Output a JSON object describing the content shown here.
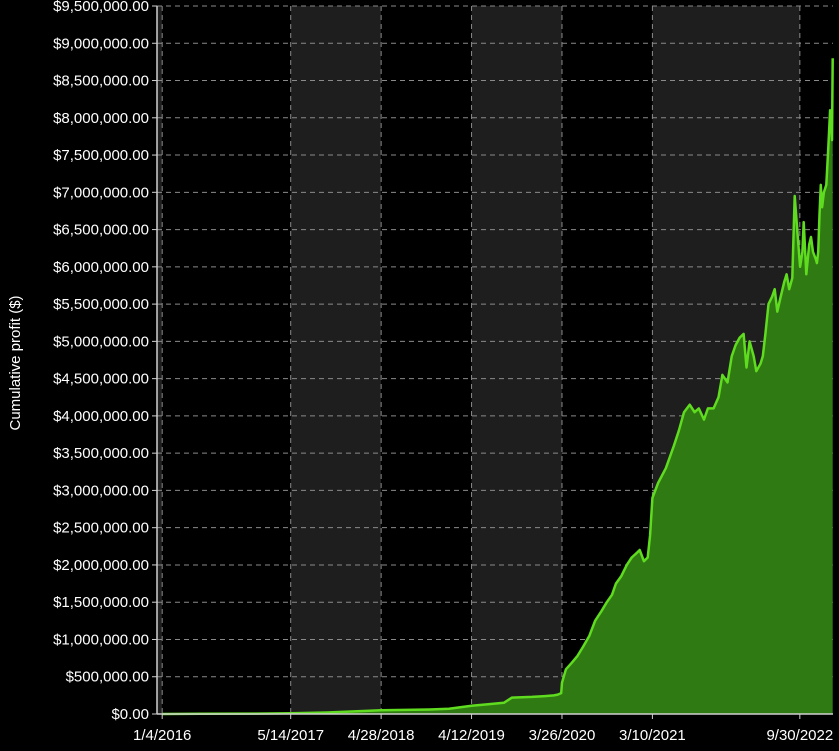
{
  "colors": {
    "background": "#000000",
    "band_light": "#1e1e1e",
    "band_dark": "#000000",
    "grid": "#8a8a8a",
    "axis": "#d0d0d0",
    "line": "#5fdc1f",
    "fill": "#2f7a12",
    "text": "#ffffff"
  },
  "chart_data": {
    "type": "area",
    "title": "",
    "xlabel": "",
    "ylabel": "Cumulative profit ($)",
    "grid": true,
    "legend": "none",
    "ylim": [
      0,
      9500000
    ],
    "xlim": [
      "2015-12-15",
      "2023-02-05"
    ],
    "y_ticks": [
      0,
      500000,
      1000000,
      1500000,
      2000000,
      2500000,
      3000000,
      3500000,
      4000000,
      4500000,
      5000000,
      5500000,
      6000000,
      6500000,
      7000000,
      7500000,
      8000000,
      8500000,
      9000000,
      9500000
    ],
    "y_tick_labels": [
      "$0.00",
      "$500,000.00",
      "$1,000,000.00",
      "$1,500,000.00",
      "$2,000,000.00",
      "$2,500,000.00",
      "$3,000,000.00",
      "$3,500,000.00",
      "$4,000,000.00",
      "$4,500,000.00",
      "$5,000,000.00",
      "$5,500,000.00",
      "$6,000,000.00",
      "$6,500,000.00",
      "$7,000,000.00",
      "$7,500,000.00",
      "$8,000,000.00",
      "$8,500,000.00",
      "$9,000,000.00",
      "$9,500,000.00"
    ],
    "x_ticks": [
      "2016-01-04",
      "2017-05-14",
      "2018-04-28",
      "2019-04-12",
      "2020-03-26",
      "2021-03-10",
      "2022-09-30"
    ],
    "x_tick_labels": [
      "1/4/2016",
      "5/14/2017",
      "4/28/2018",
      "4/12/2019",
      "3/26/2020",
      "3/10/2021",
      "9/30/2022"
    ],
    "series": [
      {
        "x": [
          "2016-01-04",
          "2016-06-01",
          "2017-01-01",
          "2017-05-14",
          "2017-10-01",
          "2018-01-15",
          "2018-04-28",
          "2018-08-01",
          "2018-11-01",
          "2019-01-15",
          "2019-04-12",
          "2019-06-15",
          "2019-08-15",
          "2019-09-15",
          "2019-12-01",
          "2020-01-20",
          "2020-02-24",
          "2020-03-10",
          "2020-03-23",
          "2020-03-26",
          "2020-04-10",
          "2020-05-01",
          "2020-05-25",
          "2020-06-15",
          "2020-07-10",
          "2020-08-01",
          "2020-08-25",
          "2020-09-15",
          "2020-10-05",
          "2020-10-20",
          "2020-11-10",
          "2020-12-01",
          "2020-12-20",
          "2021-01-05",
          "2021-01-20",
          "2021-02-05",
          "2021-02-20",
          "2021-03-01",
          "2021-03-10",
          "2021-04-01",
          "2021-05-01",
          "2021-06-01",
          "2021-06-20",
          "2021-07-10",
          "2021-08-01",
          "2021-08-20",
          "2021-09-05",
          "2021-09-25",
          "2021-10-10",
          "2021-11-01",
          "2021-11-20",
          "2021-12-05",
          "2021-12-25",
          "2022-01-10",
          "2022-01-25",
          "2022-02-10",
          "2022-02-25",
          "2022-03-08",
          "2022-03-20",
          "2022-04-05",
          "2022-04-15",
          "2022-05-01",
          "2022-05-10",
          "2022-05-20",
          "2022-06-01",
          "2022-06-15",
          "2022-06-25",
          "2022-07-05",
          "2022-07-18",
          "2022-08-01",
          "2022-08-10",
          "2022-08-20",
          "2022-09-01",
          "2022-09-10",
          "2022-09-20",
          "2022-10-01",
          "2022-10-10",
          "2022-10-15",
          "2022-10-25",
          "2022-11-05",
          "2022-11-12",
          "2022-11-20",
          "2022-12-01",
          "2022-12-05",
          "2022-12-10",
          "2022-12-15",
          "2022-12-20",
          "2022-12-25",
          "2023-01-01",
          "2023-01-10",
          "2023-01-18",
          "2023-01-25",
          "2023-02-01",
          "2023-02-04"
        ],
        "y": [
          0,
          3000,
          6000,
          10000,
          20000,
          35000,
          50000,
          55000,
          60000,
          70000,
          110000,
          130000,
          150000,
          220000,
          230000,
          240000,
          250000,
          260000,
          280000,
          420000,
          600000,
          680000,
          780000,
          900000,
          1050000,
          1250000,
          1380000,
          1500000,
          1600000,
          1750000,
          1850000,
          2000000,
          2100000,
          2150000,
          2200000,
          2050000,
          2100000,
          2400000,
          2900000,
          3100000,
          3300000,
          3600000,
          3800000,
          4050000,
          4150000,
          4050000,
          4100000,
          3950000,
          4100000,
          4100000,
          4250000,
          4550000,
          4450000,
          4800000,
          4950000,
          5050000,
          5100000,
          4650000,
          5000000,
          4800000,
          4600000,
          4700000,
          4800000,
          5100000,
          5500000,
          5600000,
          5700000,
          5400000,
          5600000,
          5800000,
          5900000,
          5700000,
          5850000,
          6950000,
          6500000,
          6000000,
          6200000,
          6600000,
          5900000,
          6300000,
          6400000,
          6200000,
          6100000,
          6050000,
          6200000,
          6700000,
          7100000,
          6800000,
          7000000,
          7100000,
          7600000,
          8100000,
          7700000,
          8800000
        ]
      }
    ]
  }
}
